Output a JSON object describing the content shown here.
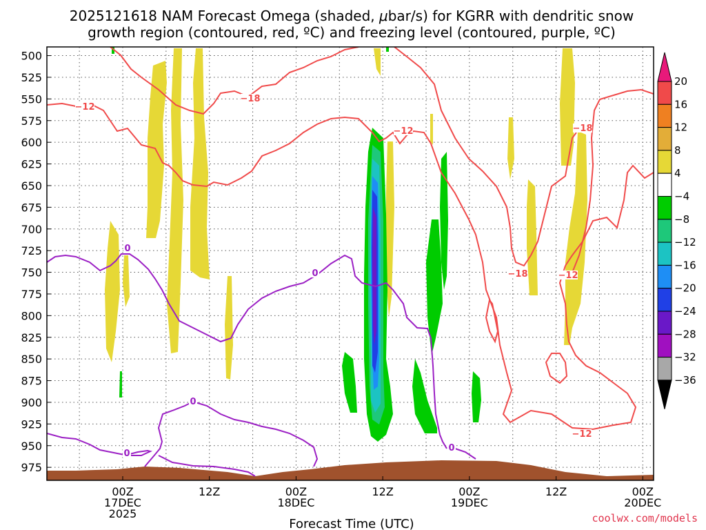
{
  "chart_data": {
    "type": "heatmap",
    "title_line1": "2025121618 NAM Forecast Omega (shaded, ",
    "title_mu": "μ",
    "title_line1_end": "bar/s) for KGRR with dendritic snow",
    "title_line2": "growth region (contoured, red, ºC) and freezing level (contoured, purple, ºC)",
    "xlabel": "Forecast Time (UTC)",
    "credit": "coolwx.com/models",
    "yticks": [
      "500",
      "525",
      "550",
      "575",
      "600",
      "625",
      "650",
      "675",
      "700",
      "725",
      "750",
      "775",
      "800",
      "825",
      "850",
      "875",
      "900",
      "925",
      "950",
      "975"
    ],
    "ylim_hpa": [
      490,
      990
    ],
    "xlim_hours": [
      -10.5,
      73.5
    ],
    "xticks": [
      {
        "hour": 0,
        "l1": "00Z",
        "l2": "17DEC",
        "l3": "2025"
      },
      {
        "hour": 12,
        "l1": "12Z",
        "l2": "",
        "l3": ""
      },
      {
        "hour": 24,
        "l1": "00Z",
        "l2": "18DEC",
        "l3": ""
      },
      {
        "hour": 36,
        "l1": "12Z",
        "l2": "",
        "l3": ""
      },
      {
        "hour": 48,
        "l1": "00Z",
        "l2": "19DEC",
        "l3": ""
      },
      {
        "hour": 60,
        "l1": "12Z",
        "l2": "",
        "l3": ""
      },
      {
        "hour": 72,
        "l1": "00Z",
        "l2": "20DEC",
        "l3": ""
      }
    ],
    "colorbar": [
      {
        "label": "20",
        "color": "#e8197a"
      },
      {
        "label": "16",
        "color": "#f04a4a"
      },
      {
        "label": "12",
        "color": "#ef8021"
      },
      {
        "label": "8",
        "color": "#e3ad38"
      },
      {
        "label": "4",
        "color": "#e6d836"
      },
      {
        "label": "−4",
        "color": "#ffffff"
      },
      {
        "label": "−8",
        "color": "#00cc00"
      },
      {
        "label": "−12",
        "color": "#1ec87a"
      },
      {
        "label": "−16",
        "color": "#1cc3c3"
      },
      {
        "label": "−20",
        "color": "#1e8ef5"
      },
      {
        "label": "−24",
        "color": "#2040e6"
      },
      {
        "label": "−28",
        "color": "#6a18c8"
      },
      {
        "label": "−32",
        "color": "#a010c0"
      },
      {
        "label": "−36",
        "color": "#a8a8a8"
      }
    ],
    "contour_labels": [
      {
        "text": "−12",
        "color": "#f04a4a"
      },
      {
        "text": "−18",
        "color": "#f04a4a"
      },
      {
        "text": "−12",
        "color": "#f04a4a"
      },
      {
        "text": "−18",
        "color": "#f04a4a"
      },
      {
        "text": "−18",
        "color": "#f04a4a"
      },
      {
        "text": "−12",
        "color": "#f04a4a"
      },
      {
        "text": "−12",
        "color": "#f04a4a"
      },
      {
        "text": "0",
        "color": "#9b1fc4"
      },
      {
        "text": "0",
        "color": "#9b1fc4"
      },
      {
        "text": "0",
        "color": "#9b1fc4"
      },
      {
        "text": "0",
        "color": "#9b1fc4"
      },
      {
        "text": "0",
        "color": "#9b1fc4"
      }
    ]
  }
}
